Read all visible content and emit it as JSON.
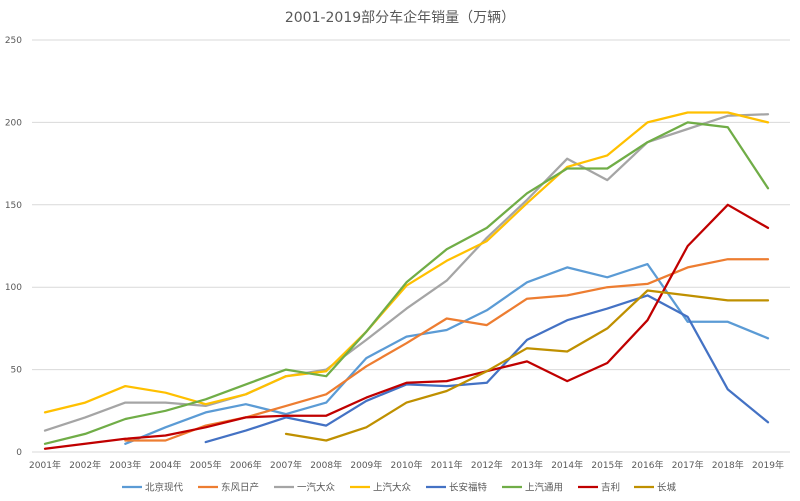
{
  "chart_data": {
    "type": "line",
    "title": "2001-2019部分车企年销量（万辆）",
    "xlabel": "",
    "ylabel": "",
    "ylim": [
      0,
      250
    ],
    "yticks": [
      0,
      50,
      100,
      150,
      200,
      250
    ],
    "grid": true,
    "legend_position": "bottom",
    "categories": [
      "2001年",
      "2002年",
      "2003年",
      "2004年",
      "2005年",
      "2006年",
      "2007年",
      "2008年",
      "2009年",
      "2010年",
      "2011年",
      "2012年",
      "2013年",
      "2014年",
      "2015年",
      "2016年",
      "2017年",
      "2018年",
      "2019年"
    ],
    "series": [
      {
        "name": "北京现代",
        "color": "#5B9BD5",
        "values": [
          null,
          null,
          5,
          15,
          24,
          29,
          23,
          30,
          57,
          70,
          74,
          86,
          103,
          112,
          106,
          114,
          79,
          79,
          69
        ]
      },
      {
        "name": "东风日产",
        "color": "#ED7D31",
        "values": [
          null,
          null,
          7,
          7,
          16,
          21,
          28,
          35,
          52,
          66,
          81,
          77,
          93,
          95,
          100,
          102,
          112,
          117,
          117
        ]
      },
      {
        "name": "一汽大众",
        "color": "#A5A5A5",
        "values": [
          13,
          21,
          30,
          30,
          28,
          35,
          46,
          50,
          68,
          87,
          104,
          130,
          153,
          178,
          165,
          188,
          196,
          204,
          205
        ]
      },
      {
        "name": "上汽大众",
        "color": "#FFC000",
        "values": [
          24,
          30,
          40,
          36,
          29,
          35,
          46,
          49,
          73,
          101,
          116,
          128,
          151,
          173,
          180,
          200,
          206,
          206,
          200
        ]
      },
      {
        "name": "长安福特",
        "color": "#4472C4",
        "values": [
          null,
          null,
          null,
          null,
          6,
          13,
          21,
          16,
          31,
          41,
          40,
          42,
          68,
          80,
          87,
          95,
          82,
          38,
          18
        ]
      },
      {
        "name": "上汽通用",
        "color": "#70AD47",
        "values": [
          5,
          11,
          20,
          25,
          32,
          41,
          50,
          46,
          73,
          103,
          123,
          136,
          157,
          172,
          172,
          188,
          200,
          197,
          160
        ]
      },
      {
        "name": "吉利",
        "color": "#C00000",
        "values": [
          2,
          5,
          8,
          10,
          15,
          21,
          22,
          22,
          33,
          42,
          43,
          49,
          55,
          43,
          54,
          80,
          125,
          150,
          136
        ]
      },
      {
        "name": "长城",
        "color": "#BF9000",
        "values": [
          null,
          null,
          null,
          null,
          null,
          null,
          11,
          7,
          15,
          30,
          37,
          49,
          63,
          61,
          75,
          98,
          95,
          92,
          92
        ]
      }
    ]
  }
}
